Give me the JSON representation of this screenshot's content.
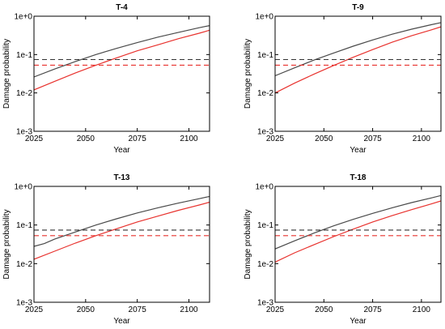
{
  "chart_data": [
    {
      "type": "line",
      "title": "T-4",
      "xlabel": "Year",
      "ylabel": "Damage probability",
      "yscale": "log",
      "xlim": [
        2025,
        2110
      ],
      "ylim": [
        0.001,
        1
      ],
      "x_ticks": [
        2025,
        2050,
        2075,
        2100
      ],
      "x_tick_labels": [
        "2025",
        "2050",
        "2075",
        "2100"
      ],
      "y_ticks": [
        0.001,
        0.01,
        0.1,
        1
      ],
      "y_tick_labels": [
        "1e-3",
        "1e-2",
        "1e-1",
        "1e+0"
      ],
      "grid": false,
      "series": [
        {
          "color": "#4a4a4a",
          "style": "solid",
          "x": [
            2025,
            2035,
            2045,
            2055,
            2065,
            2075,
            2085,
            2095,
            2105,
            2110
          ],
          "y": [
            0.026,
            0.042,
            0.066,
            0.1,
            0.145,
            0.205,
            0.285,
            0.38,
            0.5,
            0.57
          ]
        },
        {
          "color": "#e8322e",
          "style": "solid",
          "x": [
            2025,
            2035,
            2045,
            2055,
            2065,
            2075,
            2085,
            2095,
            2105,
            2110
          ],
          "y": [
            0.012,
            0.02,
            0.033,
            0.053,
            0.082,
            0.125,
            0.18,
            0.26,
            0.36,
            0.43
          ]
        },
        {
          "color": "#333333",
          "style": "dashed",
          "x": [
            2025,
            2110
          ],
          "y": [
            0.074,
            0.074
          ]
        },
        {
          "color": "#e8322e",
          "style": "dashed",
          "x": [
            2025,
            2110
          ],
          "y": [
            0.053,
            0.053
          ]
        }
      ]
    },
    {
      "type": "line",
      "title": "T-9",
      "xlabel": "Year",
      "ylabel": "Damage probability",
      "yscale": "log",
      "xlim": [
        2025,
        2110
      ],
      "ylim": [
        0.001,
        1
      ],
      "x_ticks": [
        2025,
        2050,
        2075,
        2100
      ],
      "x_tick_labels": [
        "2025",
        "2050",
        "2075",
        "2100"
      ],
      "y_ticks": [
        0.001,
        0.01,
        0.1,
        1
      ],
      "y_tick_labels": [
        "1e-3",
        "1e-2",
        "1e-1",
        "1e+0"
      ],
      "grid": false,
      "series": [
        {
          "color": "#4a4a4a",
          "style": "solid",
          "x": [
            2025,
            2035,
            2045,
            2055,
            2065,
            2075,
            2085,
            2095,
            2105,
            2110
          ],
          "y": [
            0.028,
            0.045,
            0.072,
            0.11,
            0.165,
            0.24,
            0.34,
            0.46,
            0.6,
            0.68
          ]
        },
        {
          "color": "#e8322e",
          "style": "solid",
          "x": [
            2025,
            2035,
            2045,
            2055,
            2065,
            2075,
            2085,
            2095,
            2105,
            2110
          ],
          "y": [
            0.01,
            0.018,
            0.031,
            0.052,
            0.085,
            0.135,
            0.21,
            0.31,
            0.44,
            0.53
          ]
        },
        {
          "color": "#333333",
          "style": "dashed",
          "x": [
            2025,
            2110
          ],
          "y": [
            0.074,
            0.074
          ]
        },
        {
          "color": "#e8322e",
          "style": "dashed",
          "x": [
            2025,
            2110
          ],
          "y": [
            0.053,
            0.053
          ]
        }
      ]
    },
    {
      "type": "line",
      "title": "T-13",
      "xlabel": "Year",
      "ylabel": "Damage probability",
      "yscale": "log",
      "xlim": [
        2025,
        2110
      ],
      "ylim": [
        0.001,
        1
      ],
      "x_ticks": [
        2025,
        2050,
        2075,
        2100
      ],
      "x_tick_labels": [
        "2025",
        "2050",
        "2075",
        "2100"
      ],
      "y_ticks": [
        0.001,
        0.01,
        0.1,
        1
      ],
      "y_tick_labels": [
        "1e-3",
        "1e-2",
        "1e-1",
        "1e+0"
      ],
      "grid": false,
      "series": [
        {
          "color": "#4a4a4a",
          "style": "solid",
          "x": [
            2025,
            2030,
            2035,
            2045,
            2055,
            2065,
            2075,
            2085,
            2095,
            2105,
            2110
          ],
          "y": [
            0.028,
            0.033,
            0.043,
            0.066,
            0.1,
            0.145,
            0.205,
            0.28,
            0.37,
            0.48,
            0.55
          ]
        },
        {
          "color": "#e8322e",
          "style": "solid",
          "x": [
            2025,
            2035,
            2045,
            2055,
            2065,
            2075,
            2085,
            2095,
            2105,
            2110
          ],
          "y": [
            0.013,
            0.021,
            0.034,
            0.053,
            0.08,
            0.12,
            0.17,
            0.24,
            0.33,
            0.39
          ]
        },
        {
          "color": "#333333",
          "style": "dashed",
          "x": [
            2025,
            2110
          ],
          "y": [
            0.074,
            0.074
          ]
        },
        {
          "color": "#e8322e",
          "style": "dashed",
          "x": [
            2025,
            2110
          ],
          "y": [
            0.053,
            0.053
          ]
        }
      ]
    },
    {
      "type": "line",
      "title": "T-18",
      "xlabel": "Year",
      "ylabel": "Damage probability",
      "yscale": "log",
      "xlim": [
        2025,
        2110
      ],
      "ylim": [
        0.001,
        1
      ],
      "x_ticks": [
        2025,
        2050,
        2075,
        2100
      ],
      "x_tick_labels": [
        "2025",
        "2050",
        "2075",
        "2100"
      ],
      "y_ticks": [
        0.001,
        0.01,
        0.1,
        1
      ],
      "y_tick_labels": [
        "1e-3",
        "1e-2",
        "1e-1",
        "1e+0"
      ],
      "grid": false,
      "series": [
        {
          "color": "#4a4a4a",
          "style": "solid",
          "x": [
            2025,
            2035,
            2045,
            2055,
            2065,
            2075,
            2085,
            2095,
            2105,
            2110
          ],
          "y": [
            0.024,
            0.039,
            0.062,
            0.095,
            0.14,
            0.2,
            0.28,
            0.38,
            0.5,
            0.58
          ]
        },
        {
          "color": "#e8322e",
          "style": "solid",
          "x": [
            2025,
            2035,
            2045,
            2055,
            2065,
            2075,
            2085,
            2095,
            2105,
            2110
          ],
          "y": [
            0.011,
            0.019,
            0.031,
            0.05,
            0.078,
            0.12,
            0.175,
            0.25,
            0.35,
            0.42
          ]
        },
        {
          "color": "#333333",
          "style": "dashed",
          "x": [
            2025,
            2110
          ],
          "y": [
            0.074,
            0.074
          ]
        },
        {
          "color": "#e8322e",
          "style": "dashed",
          "x": [
            2025,
            2110
          ],
          "y": [
            0.053,
            0.053
          ]
        }
      ]
    }
  ]
}
